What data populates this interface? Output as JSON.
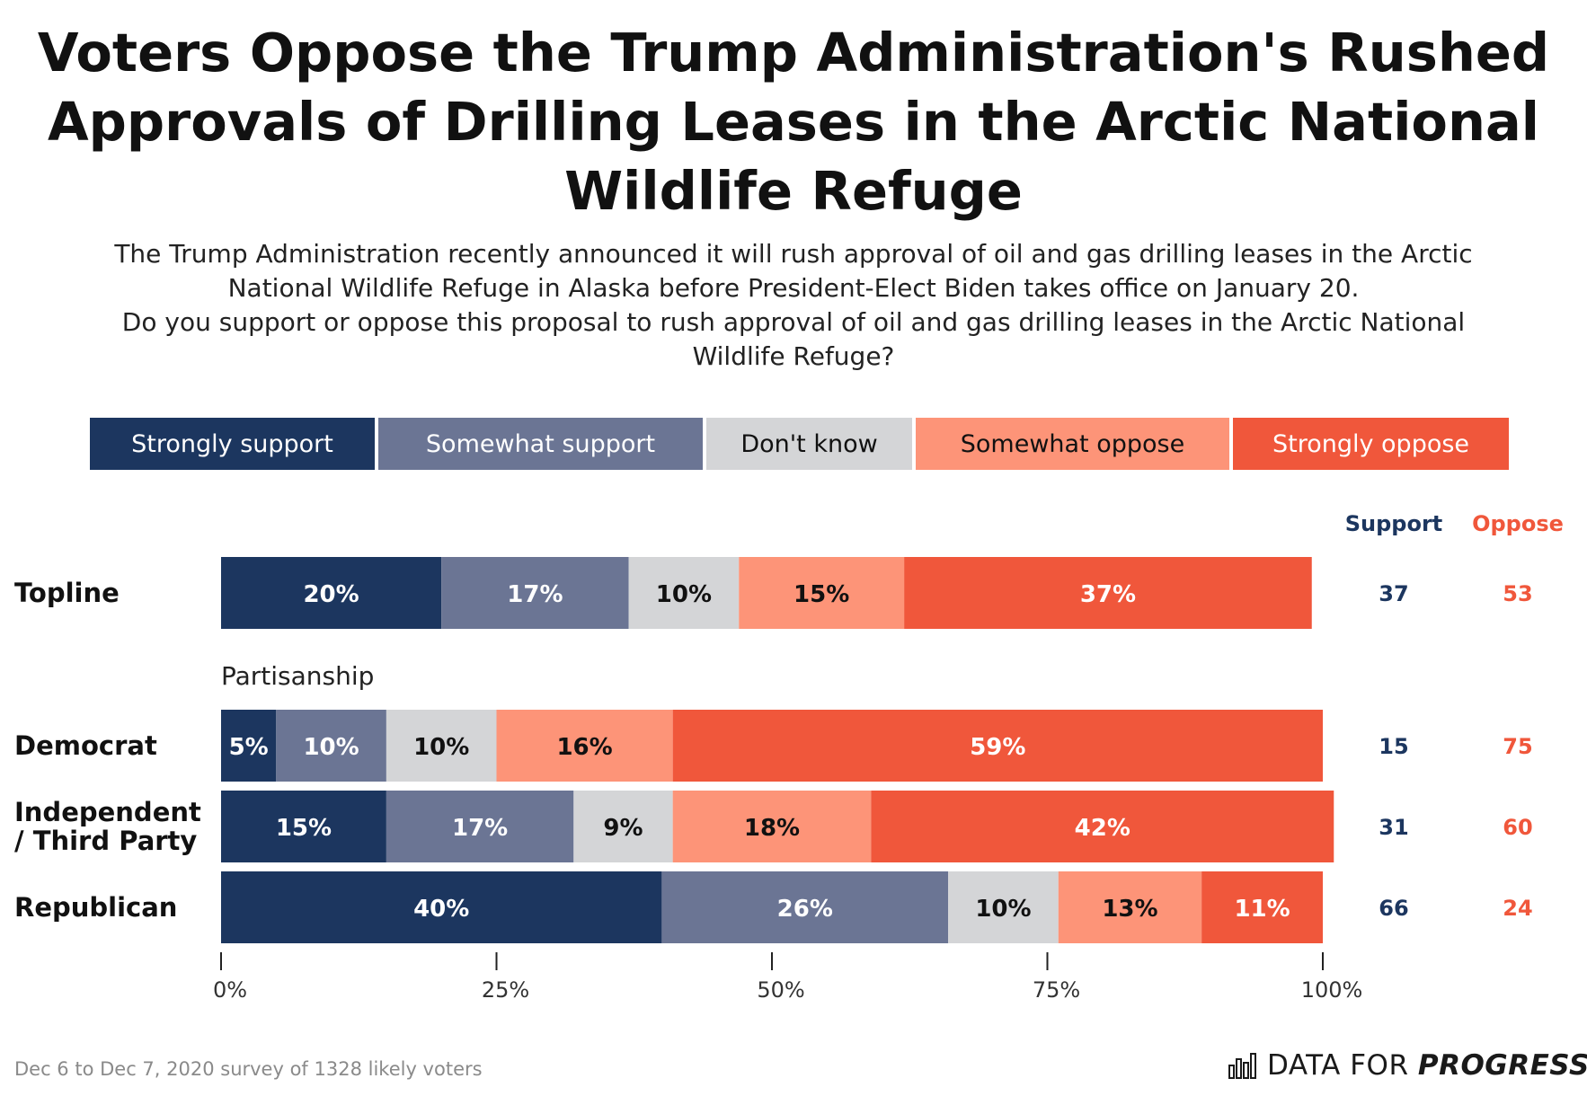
{
  "header": {
    "title_lines": [
      "Voters Oppose the Trump Administration's Rushed",
      "Approvals of Drilling Leases in the Arctic National",
      "Wildlife Refuge"
    ],
    "subtitle_lines": [
      "The Trump Administration recently announced it will rush approval of oil and gas drilling leases in the Arctic",
      "National Wildlife Refuge in Alaska before President-Elect Biden takes office on January 20.",
      "Do you support or oppose this proposal to rush approval of oil and gas drilling leases in the Arctic National",
      "Wildlife Refuge?"
    ]
  },
  "colors": {
    "strongly_support": "#1c365f",
    "somewhat_support": "#6b7594",
    "dont_know": "#d4d5d7",
    "somewhat_oppose": "#fd9478",
    "strongly_oppose": "#f0573b",
    "support_text": "#1c365f",
    "oppose_text": "#f0573b"
  },
  "chart_data": {
    "type": "bar",
    "orientation": "horizontal",
    "stacked": true,
    "legend": [
      "Strongly support",
      "Somewhat support",
      "Don't know",
      "Somewhat oppose",
      "Strongly oppose"
    ],
    "legend_position": "top",
    "section_label": "Partisanship",
    "summary_headers": {
      "support": "Support",
      "oppose": "Oppose"
    },
    "xlim": [
      0,
      100
    ],
    "x_ticks": [
      "0%",
      "25%",
      "50%",
      "75%",
      "100%"
    ],
    "rows": [
      {
        "label": [
          "Topline"
        ],
        "values": [
          20,
          17,
          10,
          15,
          37
        ],
        "labels": [
          "20%",
          "17%",
          "10%",
          "15%",
          "37%"
        ],
        "support": "37",
        "oppose": "53"
      },
      {
        "label": [
          "Democrat"
        ],
        "values": [
          5,
          10,
          10,
          16,
          59
        ],
        "labels": [
          "5%",
          "10%",
          "10%",
          "16%",
          "59%"
        ],
        "support": "15",
        "oppose": "75"
      },
      {
        "label": [
          "Independent",
          "/ Third Party"
        ],
        "values": [
          15,
          17,
          9,
          18,
          42
        ],
        "labels": [
          "15%",
          "17%",
          "9%",
          "18%",
          "42%"
        ],
        "support": "31",
        "oppose": "60"
      },
      {
        "label": [
          "Republican"
        ],
        "values": [
          40,
          26,
          10,
          13,
          11
        ],
        "labels": [
          "40%",
          "26%",
          "10%",
          "13%",
          "11%"
        ],
        "support": "66",
        "oppose": "24"
      }
    ]
  },
  "footer": {
    "note": "Dec 6 to Dec 7, 2020 survey of 1328 likely voters",
    "brand_regular": "DATA FOR",
    "brand_bold": "PROGRESS",
    "brand_icon": "bar-chart-logo-icon"
  }
}
